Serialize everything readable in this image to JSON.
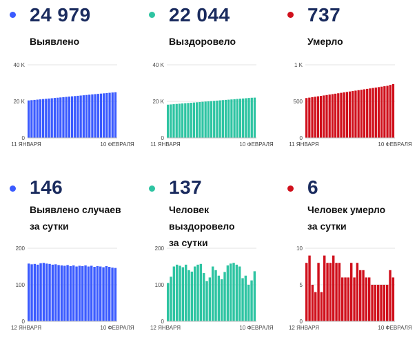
{
  "colors": {
    "blue": "#3b5bff",
    "green": "#2ec4a2",
    "red": "#d0101c",
    "value_text": "#1a2b5e"
  },
  "panels": [
    {
      "value": "24 979",
      "label": "Выявлено",
      "color": "#3b5bff"
    },
    {
      "value": "22 044",
      "label": "Выздоровело",
      "color": "#2ec4a2"
    },
    {
      "value": "737",
      "label": "Умерло",
      "color": "#d0101c"
    },
    {
      "value": "146",
      "label": "Выявлено случаев\nза сутки",
      "color": "#3b5bff"
    },
    {
      "value": "137",
      "label": "Человек выздоровело\nза сутки",
      "color": "#2ec4a2"
    },
    {
      "value": "6",
      "label": "Человек умерло\nза сутки",
      "color": "#d0101c"
    }
  ],
  "chart_data": [
    {
      "type": "bar",
      "color": "#3b5bff",
      "ylim": [
        0,
        40000
      ],
      "yticks": [
        {
          "v": 0,
          "label": "0"
        },
        {
          "v": 20000,
          "label": "20 K"
        },
        {
          "v": 40000,
          "label": "40 K"
        }
      ],
      "xlabels": [
        "11 ЯНВАРЯ",
        "10 ФЕВРАЛЯ"
      ],
      "values": [
        20500,
        20650,
        20800,
        20950,
        21100,
        21250,
        21400,
        21550,
        21700,
        21850,
        22000,
        22150,
        22300,
        22450,
        22600,
        22750,
        22900,
        23050,
        23200,
        23350,
        23500,
        23650,
        23800,
        23950,
        24100,
        24250,
        24400,
        24550,
        24700,
        24850,
        24979
      ]
    },
    {
      "type": "bar",
      "color": "#2ec4a2",
      "ylim": [
        0,
        40000
      ],
      "yticks": [
        {
          "v": 0,
          "label": "0"
        },
        {
          "v": 20000,
          "label": "20 K"
        },
        {
          "v": 40000,
          "label": "40 K"
        }
      ],
      "xlabels": [
        "11 ЯНВАРЯ",
        "10 ФЕВРАЛЯ"
      ],
      "values": [
        18200,
        18330,
        18460,
        18590,
        18720,
        18850,
        18980,
        19110,
        19240,
        19370,
        19500,
        19630,
        19760,
        19890,
        20020,
        20150,
        20280,
        20410,
        20540,
        20670,
        20800,
        20930,
        21060,
        21190,
        21320,
        21450,
        21580,
        21710,
        21840,
        21970,
        22044
      ]
    },
    {
      "type": "bar",
      "color": "#d0101c",
      "ylim": [
        0,
        1000
      ],
      "yticks": [
        {
          "v": 0,
          "label": "0"
        },
        {
          "v": 500,
          "label": "500"
        },
        {
          "v": 1000,
          "label": "1 K"
        }
      ],
      "xlabels": [
        "11 ЯНВАРЯ",
        "10 ФЕВРАЛЯ"
      ],
      "values": [
        545,
        551,
        557,
        563,
        569,
        575,
        581,
        587,
        593,
        599,
        605,
        611,
        617,
        623,
        629,
        635,
        641,
        647,
        653,
        659,
        665,
        671,
        677,
        683,
        689,
        695,
        701,
        707,
        713,
        725,
        737
      ]
    },
    {
      "type": "bar",
      "color": "#3b5bff",
      "ylim": [
        0,
        200
      ],
      "yticks": [
        {
          "v": 0,
          "label": "0"
        },
        {
          "v": 100,
          "label": "100"
        },
        {
          "v": 200,
          "label": "200"
        }
      ],
      "xlabels": [
        "12 ЯНВАРЯ",
        "10 ФЕВРАЛЯ"
      ],
      "values": [
        158,
        156,
        157,
        155,
        159,
        160,
        158,
        157,
        155,
        156,
        154,
        153,
        152,
        154,
        151,
        153,
        150,
        152,
        151,
        153,
        150,
        152,
        149,
        151,
        150,
        148,
        151,
        149,
        147,
        146
      ]
    },
    {
      "type": "bar",
      "color": "#2ec4a2",
      "ylim": [
        0,
        200
      ],
      "yticks": [
        {
          "v": 0,
          "label": "0"
        },
        {
          "v": 100,
          "label": "100"
        },
        {
          "v": 200,
          "label": "200"
        }
      ],
      "xlabels": [
        "12 ЯНВАРЯ",
        "10 ФЕВРАЛЯ"
      ],
      "values": [
        105,
        122,
        150,
        155,
        152,
        148,
        155,
        140,
        136,
        150,
        155,
        157,
        132,
        110,
        120,
        150,
        140,
        125,
        115,
        135,
        153,
        158,
        160,
        155,
        150,
        118,
        125,
        100,
        112,
        137
      ]
    },
    {
      "type": "bar",
      "color": "#d0101c",
      "ylim": [
        0,
        10
      ],
      "yticks": [
        {
          "v": 0,
          "label": "0"
        },
        {
          "v": 5,
          "label": "5"
        },
        {
          "v": 10,
          "label": "10"
        }
      ],
      "xlabels": [
        "12 ЯНВАРЯ",
        "10 ФЕВРАЛЯ"
      ],
      "values": [
        8,
        9,
        5,
        4,
        8,
        4,
        9,
        8,
        8,
        9,
        8,
        8,
        6,
        6,
        6,
        8,
        6,
        8,
        7,
        7,
        6,
        6,
        5,
        5,
        5,
        5,
        5,
        5,
        7,
        6
      ]
    }
  ]
}
